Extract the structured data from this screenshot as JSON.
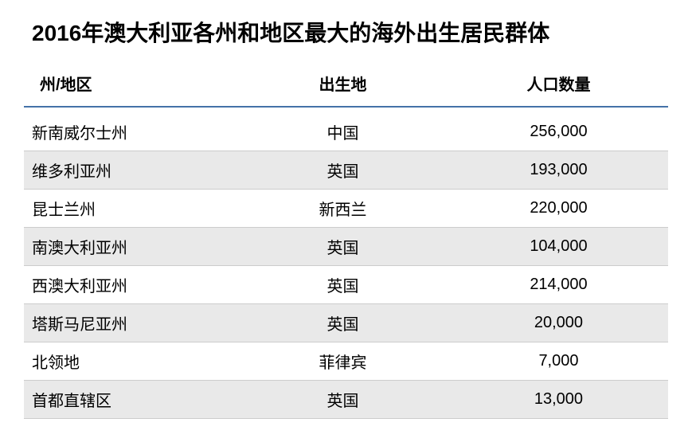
{
  "title": "2016年澳大利亚各州和地区最大的海外出生居民群体",
  "table": {
    "type": "table",
    "columns": [
      "州/地区",
      "出生地",
      "人口数量"
    ],
    "rows": [
      [
        "新南威尔士州",
        "中国",
        "256,000"
      ],
      [
        "维多利亚州",
        "英国",
        "193,000"
      ],
      [
        "昆士兰州",
        "新西兰",
        "220,000"
      ],
      [
        "南澳大利亚州",
        "英国",
        "104,000"
      ],
      [
        "西澳大利亚州",
        "英国",
        "214,000"
      ],
      [
        "塔斯马尼亚州",
        "英国",
        "20,000"
      ],
      [
        "北领地",
        "菲律宾",
        "7,000"
      ],
      [
        "首都直辖区",
        "英国",
        "13,000"
      ]
    ],
    "header_border_color": "#4472a8",
    "row_border_color": "#cccccc",
    "stripe_color": "#e9e9e9",
    "background_color": "#ffffff",
    "title_fontsize": 28,
    "header_fontsize": 20,
    "cell_fontsize": 20,
    "text_color": "#000000",
    "column_align": [
      "left",
      "center",
      "center"
    ],
    "column_widths": [
      "33%",
      "33%",
      "34%"
    ]
  }
}
